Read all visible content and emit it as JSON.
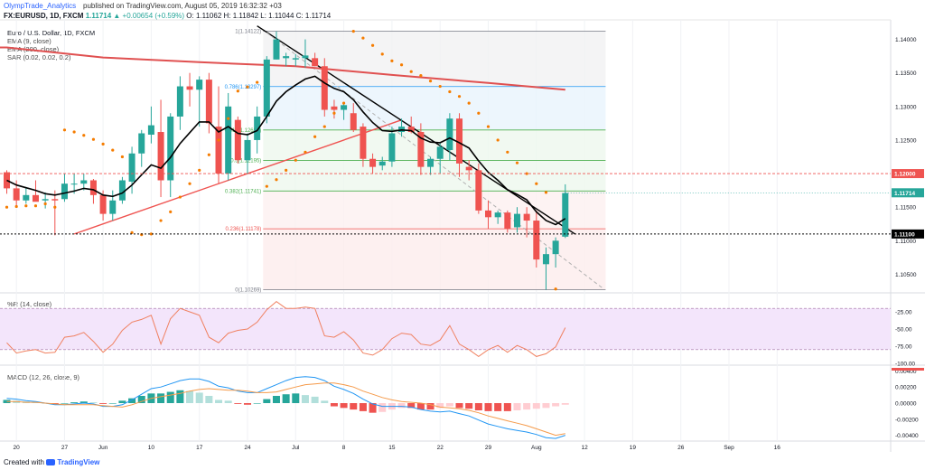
{
  "header": {
    "author": "OlympTrade_Analytics",
    "published": "published on TradingView.com, August 05, 2019 16:32:32 +03",
    "symbol": "FX:EURUSD, 1D, FXCM",
    "close_value": "1.11714",
    "change": "▲ +0.00654 (+0.59%)",
    "ohlc": "O: 1.11062 H: 1.11842 L: 1.11044 C: 1.11714"
  },
  "legend": {
    "title": "Euro / U.S. Dollar, 1D, FXCM",
    "ema9": "EMA (9, close)",
    "ema200": "EMA (200, close)",
    "sar": "SAR (0.02, 0.02, 0.2)",
    "wr": "%R (14, close)",
    "macd": "MACD (12, 26, close, 9)"
  },
  "footer": {
    "created": "Created with",
    "brand": "TradingView"
  },
  "colors": {
    "up": "#26a69a",
    "down": "#ef5350",
    "ema9": "#000000",
    "ema200": "#e05050",
    "sar": "#f57c00",
    "wr": "#f08060",
    "macd": "#2196f3",
    "signal": "#f59a4a",
    "accent": "#2962ff"
  },
  "chart_data": [
    {
      "type": "candlestick",
      "title": "Euro / U.S. Dollar, 1D, FXCM",
      "ylim": [
        1.1025,
        1.1425
      ],
      "y_ticks": [
        "1.14000",
        "1.13500",
        "1.13000",
        "1.12500",
        "1.12000",
        "1.11500",
        "1.11000",
        "1.10500"
      ],
      "y_tick_values": [
        1.14,
        1.135,
        1.13,
        1.125,
        1.12,
        1.115,
        1.11,
        1.105
      ],
      "x_labels": [
        "20",
        "27",
        "Jun",
        "10",
        "17",
        "24",
        "Jul",
        "8",
        "15",
        "22",
        "29",
        "Aug",
        "12",
        "19",
        "26",
        "Sep",
        "16"
      ],
      "x_label_index": [
        1,
        6,
        10,
        15,
        20,
        25,
        30,
        35,
        40,
        45,
        50,
        55,
        60,
        65,
        70,
        75,
        80
      ],
      "price_badges": {
        "current": "1.11714",
        "line_1120": "1.12000",
        "line_1110": "1.11100"
      },
      "candles": [
        [
          1.1202,
          1.1205,
          1.117,
          1.1178
        ],
        [
          1.1178,
          1.119,
          1.115,
          1.116
        ],
        [
          1.116,
          1.118,
          1.1155,
          1.1168
        ],
        [
          1.1168,
          1.119,
          1.116,
          1.1158
        ],
        [
          1.116,
          1.1172,
          1.1148,
          1.1162
        ],
        [
          1.1162,
          1.1175,
          1.1108,
          1.116
        ],
        [
          1.1162,
          1.12,
          1.1158,
          1.1185
        ],
        [
          1.1185,
          1.12,
          1.117,
          1.1185
        ],
        [
          1.1185,
          1.12,
          1.1175,
          1.119
        ],
        [
          1.119,
          1.1192,
          1.1155,
          1.1168
        ],
        [
          1.1168,
          1.1175,
          1.113,
          1.114
        ],
        [
          1.114,
          1.1175,
          1.113,
          1.116
        ],
        [
          1.116,
          1.1195,
          1.1155,
          1.119
        ],
        [
          1.1188,
          1.124,
          1.117,
          1.123
        ],
        [
          1.123,
          1.1265,
          1.121,
          1.126
        ],
        [
          1.1258,
          1.13,
          1.1245,
          1.1272
        ],
        [
          1.1262,
          1.131,
          1.1165,
          1.119
        ],
        [
          1.119,
          1.129,
          1.1165,
          1.1285
        ],
        [
          1.1285,
          1.1345,
          1.1265,
          1.133
        ],
        [
          1.133,
          1.135,
          1.13,
          1.1325
        ],
        [
          1.1325,
          1.1345,
          1.127,
          1.134
        ],
        [
          1.134,
          1.135,
          1.126,
          1.1275
        ],
        [
          1.127,
          1.133,
          1.1185,
          1.12
        ],
        [
          1.12,
          1.132,
          1.119,
          1.13
        ],
        [
          1.128,
          1.1285,
          1.1215,
          1.122
        ],
        [
          1.122,
          1.126,
          1.12,
          1.125
        ],
        [
          1.125,
          1.13,
          1.123,
          1.1285
        ],
        [
          1.1285,
          1.1375,
          1.1275,
          1.137
        ],
        [
          1.137,
          1.1412,
          1.137,
          1.14
        ],
        [
          1.1372,
          1.138,
          1.136,
          1.1375
        ],
        [
          1.137,
          1.1378,
          1.136,
          1.1372
        ],
        [
          1.1372,
          1.14,
          1.1358,
          1.1376
        ],
        [
          1.1372,
          1.138,
          1.136,
          1.136
        ],
        [
          1.136,
          1.1372,
          1.1285,
          1.1295
        ],
        [
          1.13,
          1.131,
          1.1282,
          1.1295
        ],
        [
          1.1295,
          1.1305,
          1.128,
          1.1302
        ],
        [
          1.129,
          1.1305,
          1.1262,
          1.1265
        ],
        [
          1.127,
          1.1275,
          1.121,
          1.1222
        ],
        [
          1.1222,
          1.123,
          1.12,
          1.121
        ],
        [
          1.1212,
          1.1225,
          1.1205,
          1.1218
        ],
        [
          1.1218,
          1.127,
          1.121,
          1.126
        ],
        [
          1.1262,
          1.1282,
          1.1255,
          1.127
        ],
        [
          1.127,
          1.1285,
          1.126,
          1.1262
        ],
        [
          1.1262,
          1.1275,
          1.1198,
          1.121
        ],
        [
          1.121,
          1.1225,
          1.1198,
          1.1222
        ],
        [
          1.1222,
          1.1245,
          1.12,
          1.124
        ],
        [
          1.1235,
          1.129,
          1.122,
          1.1282
        ],
        [
          1.1282,
          1.129,
          1.1195,
          1.1215
        ],
        [
          1.121,
          1.122,
          1.119,
          1.1205
        ],
        [
          1.1205,
          1.1215,
          1.114,
          1.1145
        ],
        [
          1.1145,
          1.116,
          1.1118,
          1.1135
        ],
        [
          1.1135,
          1.1145,
          1.1125,
          1.1142
        ],
        [
          1.1142,
          1.1145,
          1.1112,
          1.1118
        ],
        [
          1.112,
          1.115,
          1.1112,
          1.114
        ],
        [
          1.114,
          1.115,
          1.1105,
          1.113
        ],
        [
          1.113,
          1.1145,
          1.106,
          1.1072
        ],
        [
          1.1065,
          1.109,
          1.1027,
          1.108
        ],
        [
          1.108,
          1.1105,
          1.106,
          1.11
        ],
        [
          1.1106,
          1.1184,
          1.1104,
          1.1171
        ]
      ],
      "ema9": [
        1.119,
        1.1183,
        1.1179,
        1.1175,
        1.117,
        1.1168,
        1.1171,
        1.1174,
        1.1178,
        1.1176,
        1.1168,
        1.1166,
        1.1171,
        1.1183,
        1.1198,
        1.1213,
        1.1208,
        1.1224,
        1.1245,
        1.1261,
        1.1277,
        1.1277,
        1.1262,
        1.127,
        1.126,
        1.1258,
        1.1264,
        1.1285,
        1.1308,
        1.1322,
        1.1332,
        1.1341,
        1.1345,
        1.1335,
        1.1327,
        1.1322,
        1.131,
        1.1292,
        1.1276,
        1.1264,
        1.1263,
        1.1265,
        1.1264,
        1.1253,
        1.1247,
        1.1246,
        1.1253,
        1.1246,
        1.1238,
        1.1219,
        1.1202,
        1.119,
        1.1176,
        1.1169,
        1.1161,
        1.1143,
        1.113,
        1.1124,
        1.1133
      ],
      "ema200": {
        "start": [
          0,
          1.1388
        ],
        "points": [
          [
            0,
            1.1388
          ],
          [
            10,
            1.1373
          ],
          [
            20,
            1.1366
          ],
          [
            30,
            1.136
          ],
          [
            40,
            1.1347
          ],
          [
            50,
            1.1335
          ],
          [
            58,
            1.1325
          ]
        ]
      },
      "sar": [
        [
          0,
          1.115
        ],
        [
          1,
          1.1151
        ],
        [
          2,
          1.1152
        ],
        [
          3,
          1.1152
        ],
        [
          4,
          1.1155
        ],
        [
          5,
          1.115
        ],
        [
          6,
          1.1265
        ],
        [
          7,
          1.1262
        ],
        [
          8,
          1.1257
        ],
        [
          9,
          1.1251
        ],
        [
          10,
          1.1244
        ],
        [
          11,
          1.1235
        ],
        [
          12,
          1.1225
        ],
        [
          13,
          1.1112
        ],
        [
          14,
          1.1109
        ],
        [
          15,
          1.111
        ],
        [
          16,
          1.113
        ],
        [
          17,
          1.1143
        ],
        [
          18,
          1.1165
        ],
        [
          19,
          1.1185
        ],
        [
          20,
          1.1205
        ],
        [
          21,
          1.1228
        ],
        [
          22,
          1.125
        ],
        [
          23,
          1.1282
        ],
        [
          24,
          1.1323
        ],
        [
          25,
          1.1329
        ],
        [
          26,
          1.1336
        ],
        [
          27,
          1.1181
        ],
        [
          28,
          1.1191
        ],
        [
          29,
          1.1205
        ],
        [
          30,
          1.122
        ],
        [
          31,
          1.1232
        ],
        [
          32,
          1.1255
        ],
        [
          33,
          1.127
        ],
        [
          34,
          1.129
        ],
        [
          35,
          1.1305
        ],
        [
          36,
          1.1412
        ],
        [
          37,
          1.1402
        ],
        [
          38,
          1.1391
        ],
        [
          39,
          1.1378
        ],
        [
          40,
          1.1368
        ],
        [
          41,
          1.1362
        ],
        [
          42,
          1.1352
        ],
        [
          43,
          1.1346
        ],
        [
          44,
          1.1338
        ],
        [
          45,
          1.133
        ],
        [
          46,
          1.1322
        ],
        [
          47,
          1.1315
        ],
        [
          48,
          1.1305
        ],
        [
          49,
          1.129
        ],
        [
          50,
          1.127
        ],
        [
          51,
          1.125
        ],
        [
          52,
          1.1232
        ],
        [
          53,
          1.1216
        ],
        [
          54,
          1.12
        ],
        [
          55,
          1.1185
        ],
        [
          56,
          1.1172
        ],
        [
          57,
          1.1028
        ]
      ],
      "trendlines": [
        {
          "from": [
            7,
            1.111
          ],
          "to": [
            41,
            1.128
          ],
          "color": "#ef5350"
        },
        {
          "from": [
            26,
            1.142
          ],
          "to": [
            59,
            1.111
          ],
          "color": "#000000"
        },
        {
          "from": [
            27,
            1.141
          ],
          "to": [
            62,
            1.1028
          ],
          "color": "#b0b0b0",
          "dashed": true
        }
      ],
      "fibonacci": {
        "from_index": 27,
        "to_index": 62,
        "levels": [
          {
            "label": "1(1.14122)",
            "value": 1.14122
          },
          {
            "label": "0.786(1.13297)",
            "value": 1.13297
          },
          {
            "label": "0.618(1.12650)",
            "value": 1.1265
          },
          {
            "label": "0.5(1.12195)",
            "value": 1.12195
          },
          {
            "label": "0.382(1.11741)",
            "value": 1.11741
          },
          {
            "label": "0.236(1.11178)",
            "value": 1.11178
          },
          {
            "label": "0(1.10269)",
            "value": 1.10269
          }
        ]
      }
    },
    {
      "type": "line",
      "title": "%R (14, close)",
      "ylim": [
        -100,
        0
      ],
      "y_ticks": [
        "-25.00",
        "-50.00",
        "-75.00",
        "-100.00"
      ],
      "y_tick_values": [
        -25,
        -50,
        -75,
        -100
      ],
      "band": [
        -20,
        -80
      ],
      "values": [
        -70,
        -85,
        -82,
        -80,
        -85,
        -84,
        -62,
        -60,
        -55,
        -68,
        -84,
        -72,
        -52,
        -40,
        -36,
        -30,
        -72,
        -35,
        -20,
        -25,
        -30,
        -62,
        -70,
        -56,
        -52,
        -50,
        -40,
        -22,
        -10,
        -20,
        -20,
        -18,
        -20,
        -60,
        -62,
        -54,
        -66,
        -85,
        -88,
        -80,
        -64,
        -56,
        -58,
        -72,
        -74,
        -66,
        -45,
        -72,
        -80,
        -90,
        -80,
        -74,
        -84,
        -74,
        -80,
        -90,
        -86,
        -76,
        -48
      ]
    },
    {
      "type": "bar",
      "title": "MACD (12, 26, close, 9)",
      "ylim": [
        -0.0045,
        0.0045
      ],
      "y_ticks": [
        "0.00400",
        "0.00200",
        "0.00000",
        "-0.00200",
        "-0.00400"
      ],
      "y_tick_values": [
        0.004,
        0.002,
        0,
        -0.002,
        -0.004
      ],
      "histogram": [
        0.0004,
        0.0003,
        0.0002,
        0.0001,
        0.0,
        -0.0001,
        0.0,
        0.0001,
        0.0002,
        0.0001,
        -0.0001,
        0.0,
        0.0003,
        0.0006,
        0.0009,
        0.0012,
        0.0012,
        0.0014,
        0.0016,
        0.0015,
        0.0013,
        0.0009,
        0.0004,
        0.0003,
        -0.0001,
        -0.0002,
        0.0,
        0.0005,
        0.0009,
        0.0011,
        0.0012,
        0.001,
        0.0008,
        0.0003,
        -0.0004,
        -0.0006,
        -0.0008,
        -0.001,
        -0.0012,
        -0.0011,
        -0.0008,
        -0.0006,
        -0.0006,
        -0.0008,
        -0.0008,
        -0.0006,
        -0.0004,
        -0.0006,
        -0.0007,
        -0.0009,
        -0.001,
        -0.001,
        -0.001,
        -0.0009,
        -0.0008,
        -0.0007,
        -0.0006,
        -0.0004,
        -0.0002
      ],
      "macd": [
        0.0006,
        0.0005,
        0.0003,
        0.0002,
        0.0,
        -0.0002,
        -0.0002,
        -0.0001,
        0.0,
        -0.0001,
        -0.0004,
        -0.0004,
        -0.0002,
        0.0004,
        0.0011,
        0.0018,
        0.002,
        0.0024,
        0.0028,
        0.003,
        0.003,
        0.0027,
        0.0021,
        0.0019,
        0.0015,
        0.0013,
        0.0013,
        0.0018,
        0.0023,
        0.0028,
        0.0032,
        0.0033,
        0.0032,
        0.0028,
        0.0021,
        0.0017,
        0.0012,
        0.0005,
        -0.0001,
        -0.0004,
        -0.0004,
        -0.0004,
        -0.0005,
        -0.0008,
        -0.001,
        -0.0011,
        -0.001,
        -0.0013,
        -0.0016,
        -0.0021,
        -0.0026,
        -0.0029,
        -0.0032,
        -0.0034,
        -0.0036,
        -0.0039,
        -0.0043,
        -0.0044,
        -0.004
      ],
      "signal": [
        0.0002,
        0.0002,
        0.0001,
        0.0001,
        0.0,
        -0.0001,
        -0.0002,
        -0.0002,
        -0.0002,
        -0.0002,
        -0.0003,
        -0.0004,
        -0.0005,
        -0.0002,
        0.0002,
        0.0006,
        0.0008,
        0.001,
        0.0012,
        0.0015,
        0.0017,
        0.0018,
        0.0017,
        0.0016,
        0.0016,
        0.0015,
        0.0013,
        0.0013,
        0.0014,
        0.0017,
        0.002,
        0.0023,
        0.0024,
        0.0025,
        0.0025,
        0.0023,
        0.002,
        0.0015,
        0.0011,
        0.0007,
        0.0004,
        0.0002,
        0.0001,
        0.0,
        -0.0002,
        -0.0005,
        -0.0006,
        -0.0007,
        -0.0009,
        -0.0012,
        -0.0016,
        -0.0019,
        -0.0022,
        -0.0025,
        -0.0028,
        -0.0032,
        -0.0036,
        -0.004,
        -0.0038
      ]
    }
  ]
}
